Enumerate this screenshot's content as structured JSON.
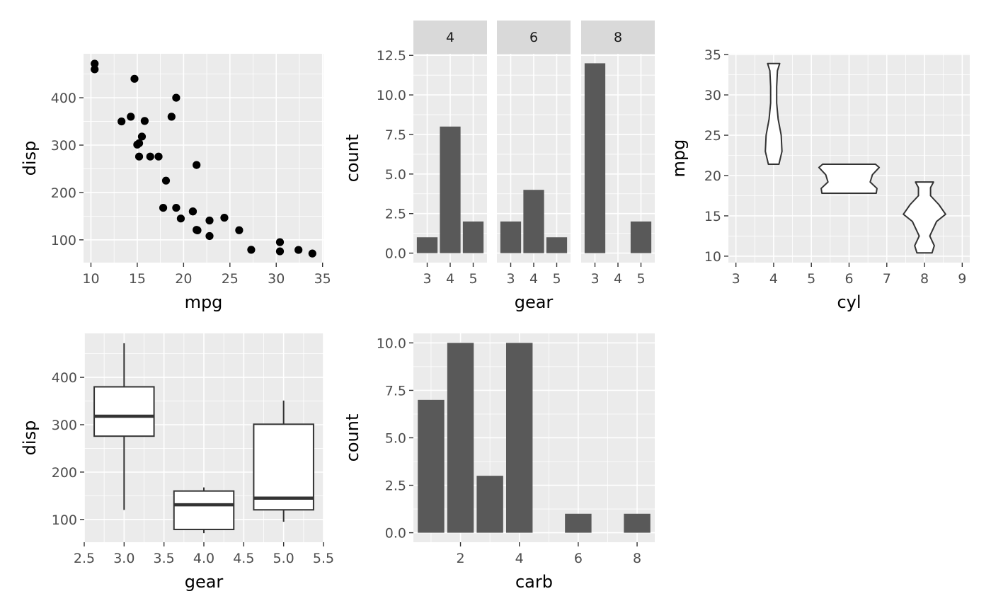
{
  "colors": {
    "panel_bg": "#EBEBEB",
    "grid_major": "#FFFFFF",
    "strip_bg": "#D9D9D9",
    "bar_fill": "#595959",
    "point": "#000000",
    "tick": "#333333",
    "tick_label": "#4D4D4D"
  },
  "chart_data": [
    {
      "type": "scatter",
      "xlabel": "mpg",
      "ylabel": "disp",
      "xlim": [
        9.2,
        35.1
      ],
      "ylim": [
        51.9,
        492.8
      ],
      "x_ticks": [
        10,
        15,
        20,
        25,
        30,
        35
      ],
      "x_tick_labels": [
        "10",
        "15",
        "20",
        "25",
        "30",
        "35"
      ],
      "y_ticks": [
        100,
        200,
        300,
        400
      ],
      "y_tick_labels": [
        "100",
        "200",
        "300",
        "400"
      ],
      "points": [
        [
          21,
          160
        ],
        [
          21,
          160
        ],
        [
          22.8,
          108
        ],
        [
          21.4,
          258
        ],
        [
          18.7,
          360
        ],
        [
          18.1,
          225
        ],
        [
          14.3,
          360
        ],
        [
          24.4,
          146.7
        ],
        [
          22.8,
          140.8
        ],
        [
          19.2,
          167.6
        ],
        [
          17.8,
          167.6
        ],
        [
          16.4,
          275.8
        ],
        [
          17.3,
          275.8
        ],
        [
          15.2,
          275.8
        ],
        [
          10.4,
          472
        ],
        [
          10.4,
          460
        ],
        [
          14.7,
          440
        ],
        [
          32.4,
          78.7
        ],
        [
          30.4,
          75.7
        ],
        [
          33.9,
          71.1
        ],
        [
          21.5,
          120.1
        ],
        [
          15.5,
          318
        ],
        [
          15.2,
          304
        ],
        [
          13.3,
          350
        ],
        [
          19.2,
          400
        ],
        [
          27.3,
          79
        ],
        [
          26,
          120.3
        ],
        [
          30.4,
          95.1
        ],
        [
          15.8,
          351
        ],
        [
          19.7,
          145
        ],
        [
          15,
          301
        ],
        [
          21.4,
          121
        ]
      ]
    },
    {
      "type": "bar",
      "faceted_by": "cyl",
      "xlabel": "gear",
      "ylabel": "count",
      "ylim": [
        -0.6,
        12.6
      ],
      "y_ticks": [
        0,
        2.5,
        5,
        7.5,
        10,
        12.5
      ],
      "y_tick_labels": [
        "0.0",
        "2.5",
        "5.0",
        "7.5",
        "10.0",
        "12.5"
      ],
      "categories": [
        "3",
        "4",
        "5"
      ],
      "facets": [
        {
          "label": "4",
          "values": [
            1,
            8,
            2
          ]
        },
        {
          "label": "6",
          "values": [
            2,
            4,
            1
          ]
        },
        {
          "label": "8",
          "values": [
            12,
            0,
            2
          ]
        }
      ]
    },
    {
      "type": "violin",
      "xlabel": "cyl",
      "ylabel": "mpg",
      "xlim": [
        2.8,
        9.2
      ],
      "ylim": [
        9.2,
        35.1
      ],
      "x_ticks": [
        3,
        4,
        5,
        6,
        7,
        8,
        9
      ],
      "x_tick_labels": [
        "3",
        "4",
        "5",
        "6",
        "7",
        "8",
        "9"
      ],
      "y_ticks": [
        10,
        15,
        20,
        25,
        30,
        35
      ],
      "y_tick_labels": [
        "10",
        "15",
        "20",
        "25",
        "30",
        "35"
      ],
      "violins": [
        {
          "x": 4,
          "profile": [
            [
              21.4,
              0.14
            ],
            [
              23,
              0.22
            ],
            [
              25,
              0.2
            ],
            [
              27,
              0.12
            ],
            [
              29,
              0.08
            ],
            [
              31,
              0.08
            ],
            [
              33,
              0.1
            ],
            [
              33.9,
              0.16
            ]
          ]
        },
        {
          "x": 6,
          "profile": [
            [
              17.8,
              0.72
            ],
            [
              18.4,
              0.74
            ],
            [
              19.2,
              0.56
            ],
            [
              20.1,
              0.62
            ],
            [
              21,
              0.8
            ],
            [
              21.4,
              0.7
            ]
          ]
        },
        {
          "x": 8,
          "profile": [
            [
              10.4,
              0.2
            ],
            [
              11.3,
              0.26
            ],
            [
              12.5,
              0.14
            ],
            [
              14.3,
              0.32
            ],
            [
              15.2,
              0.56
            ],
            [
              16.4,
              0.38
            ],
            [
              17.5,
              0.16
            ],
            [
              18.5,
              0.16
            ],
            [
              19.2,
              0.24
            ]
          ]
        }
      ]
    },
    {
      "type": "boxplot",
      "xlabel": "gear",
      "ylabel": "disp",
      "xlim": [
        2.5,
        5.5
      ],
      "ylim": [
        51.9,
        492.8
      ],
      "x_ticks": [
        2.5,
        3,
        3.5,
        4,
        4.5,
        5,
        5.5
      ],
      "x_tick_labels": [
        "2.5",
        "3.0",
        "3.5",
        "4.0",
        "4.5",
        "5.0",
        "5.5"
      ],
      "y_ticks": [
        100,
        200,
        300,
        400
      ],
      "y_tick_labels": [
        "100",
        "200",
        "300",
        "400"
      ],
      "boxes": [
        {
          "x": 3,
          "whisker_low": 120.1,
          "q1": 275.8,
          "median": 318,
          "q3": 380,
          "whisker_high": 472
        },
        {
          "x": 4,
          "whisker_low": 71.1,
          "q1": 78.85,
          "median": 130.9,
          "q3": 160,
          "whisker_high": 167.6
        },
        {
          "x": 5,
          "whisker_low": 95.1,
          "q1": 120.3,
          "median": 145,
          "q3": 301,
          "whisker_high": 351
        }
      ]
    },
    {
      "type": "bar",
      "xlabel": "carb",
      "ylabel": "count",
      "xlim": [
        0.4,
        8.6
      ],
      "ylim": [
        -0.5,
        10.5
      ],
      "x_ticks": [
        2,
        4,
        6,
        8
      ],
      "x_tick_labels": [
        "2",
        "4",
        "6",
        "8"
      ],
      "y_ticks": [
        0,
        2.5,
        5,
        7.5,
        10
      ],
      "y_tick_labels": [
        "0.0",
        "2.5",
        "5.0",
        "7.5",
        "10.0"
      ],
      "x": [
        1,
        2,
        3,
        4,
        6,
        8
      ],
      "values": [
        7,
        10,
        3,
        10,
        1,
        1
      ]
    }
  ]
}
